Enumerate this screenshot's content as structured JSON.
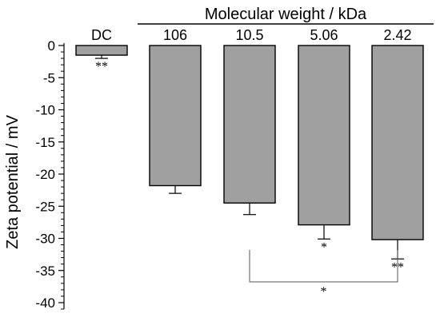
{
  "chart_data": {
    "type": "bar",
    "header_label": "Molecular weight / kDa",
    "ylabel": "Zeta potential / mV",
    "xlabel": "",
    "ylim": [
      -41,
      0
    ],
    "yticks": [
      0,
      -5,
      -10,
      -15,
      -20,
      -25,
      -30,
      -35,
      -40
    ],
    "categories": [
      "DC",
      "106",
      "10.5",
      "5.06",
      "2.42"
    ],
    "values": [
      -1.5,
      -21.8,
      -24.5,
      -27.9,
      -30.2
    ],
    "errors": [
      0.5,
      1.2,
      1.8,
      2.2,
      3.0
    ],
    "bar_marks": [
      "**",
      "",
      "",
      "*",
      "**"
    ],
    "bracket": {
      "from": "10.5",
      "to": "2.42",
      "label": "*"
    },
    "colors": {
      "bar_fill": "#a0a0a0",
      "bar_stroke": "#000000"
    }
  }
}
